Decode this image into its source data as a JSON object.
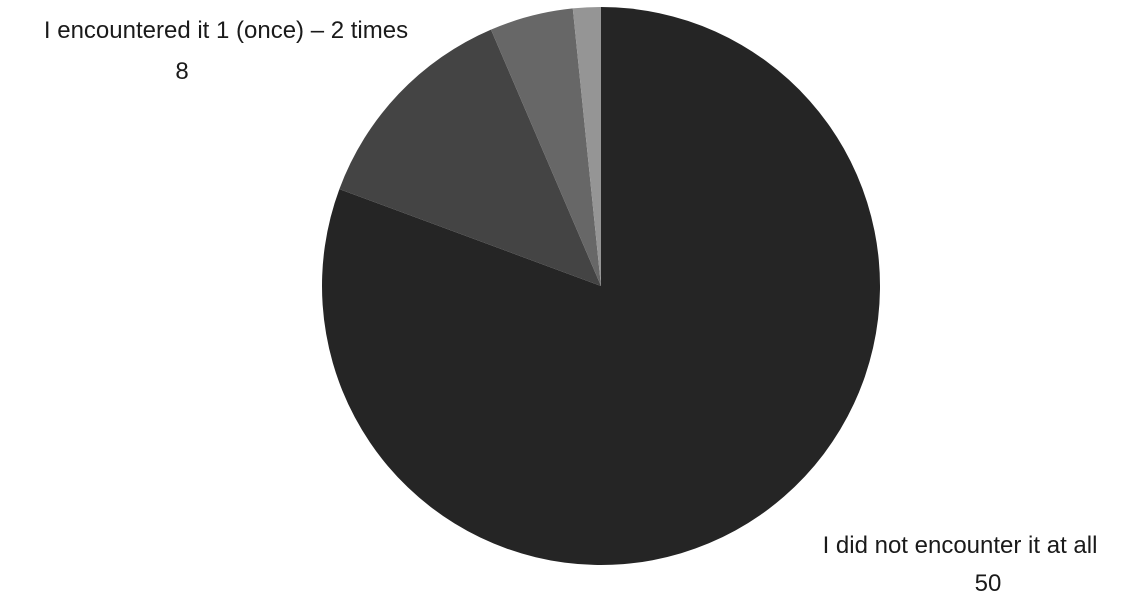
{
  "chart_data": {
    "type": "pie",
    "start_angle_deg": 0,
    "direction": "clockwise",
    "categories": [
      "I did not encounter it at all",
      "I encountered it 1 (once) – 2 times",
      "",
      ""
    ],
    "values": [
      50,
      8,
      3,
      1
    ],
    "colors": [
      "#252525",
      "#444444",
      "#676767",
      "#959595"
    ],
    "data_labels": [
      {
        "category": "I did not encounter it at all",
        "value": "50"
      },
      {
        "category": "I encountered it 1 (once) – 2 times",
        "value": "8"
      }
    ],
    "legend": "none",
    "title": ""
  }
}
